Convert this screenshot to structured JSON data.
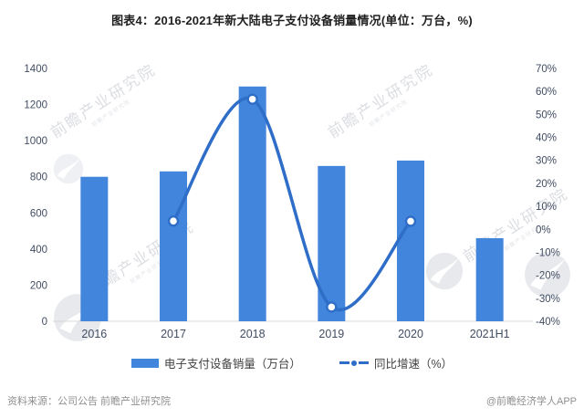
{
  "title": "图表4：2016-2021年新大陆电子支付设备销量情况(单位：万台，%)",
  "legend": {
    "bar_label": "电子支付设备销量（万台）",
    "line_label": "同比增速（%）"
  },
  "footer": {
    "source": "资料来源：公司公告 前瞻产业研究院",
    "credit": "@前瞻经济学人APP"
  },
  "watermark": {
    "text": "前瞻产业研究院",
    "logo_name": "forward-swoosh-logo"
  },
  "colors": {
    "bar": "#4285DC",
    "line": "#2F6EC8",
    "marker_fill": "#FFFFFF",
    "axis_label": "#414D63",
    "axis_line": "#D8D8D8",
    "title": "#1F1F1F",
    "footer": "#8F8F8F"
  },
  "chart_data": {
    "type": "bar",
    "subtype": "bar+line combo, dual axis",
    "title": "图表4：2016-2021年新大陆电子支付设备销量情况(单位：万台，%)",
    "categories": [
      "2016",
      "2017",
      "2018",
      "2019",
      "2020",
      "2021H1"
    ],
    "series": [
      {
        "name": "电子支付设备销量（万台）",
        "type": "bar",
        "axis": "left",
        "values": [
          800,
          830,
          1300,
          860,
          890,
          460
        ]
      },
      {
        "name": "同比增速（%）",
        "type": "line",
        "axis": "right",
        "values": [
          null,
          3.6,
          56.6,
          -33.8,
          3.5,
          null
        ]
      }
    ],
    "left_axis": {
      "min": 0,
      "max": 1400,
      "step": 200,
      "tick_format": "plain"
    },
    "right_axis": {
      "min": -40,
      "max": 70,
      "step": 10,
      "tick_format": "percent"
    },
    "grid": false,
    "legend_position": "bottom"
  }
}
